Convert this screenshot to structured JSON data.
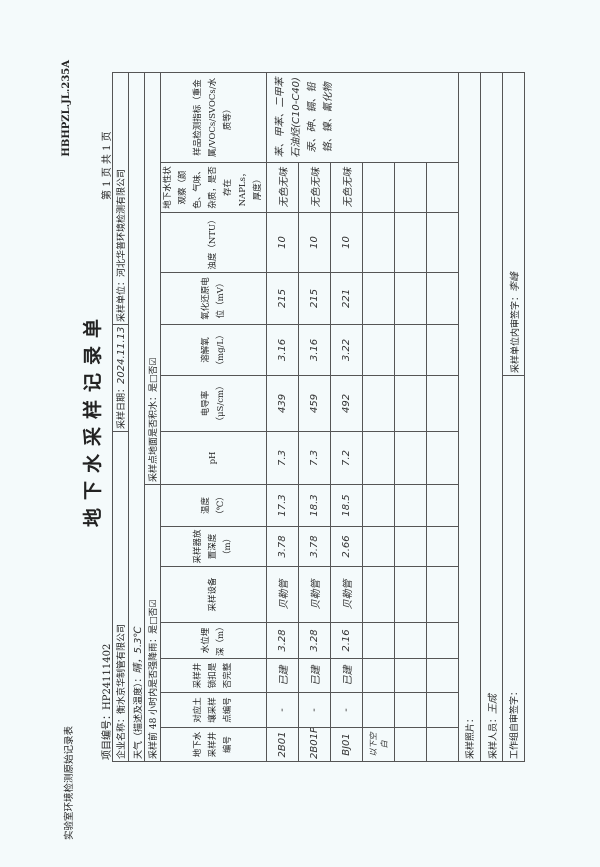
{
  "header": {
    "lab_form_name": "实验室环境检测原始记录表",
    "form_code": "HBHPZL.JL.235A",
    "title": "地下水采样记录单",
    "page": "第 1 页 共 1 页",
    "project_no_label": "项目编号：",
    "project_no": "HP24111402"
  },
  "info": {
    "company_label": "企业名称：",
    "company": "衡水京华制管有限公司",
    "date_label": "采样日期：",
    "date": "2024.11.13",
    "unit_label": "采样单位：",
    "unit": "河北华普环境检测有限公司",
    "weather_label": "天气（描述及温度）：",
    "weather": "晴，5.3℃",
    "rain_label": "采样前 48 小时内是否强降雨：是□否☑",
    "water_label": "采样点地面是否积水：是□否☑"
  },
  "columns": [
    "地下水采样井编号",
    "对应土壤采样点编号",
    "采样井锁扣是否完整",
    "水位埋深（m）",
    "采样设备",
    "采样器放置深度（m）",
    "温度（℃）",
    "pH",
    "电导率（μS/cm）",
    "溶解氧（mg/L）",
    "氧化还原电位（mV）",
    "浊度（NTU）",
    "地下水性状观察（颜色、气味、杂质，是否存在NAPLs，厚度）",
    "样品检测指标（重金属/VOCs/SVOCs/水质等）"
  ],
  "rows": [
    [
      "2B01",
      "-",
      "已建",
      "3.28",
      "贝勒管",
      "3.78",
      "17.3",
      "7.3",
      "439",
      "3.16",
      "215",
      "10",
      "无色无味"
    ],
    [
      "2B01P",
      "-",
      "已建",
      "3.28",
      "贝勒管",
      "3.78",
      "18.3",
      "7.3",
      "459",
      "3.16",
      "215",
      "10",
      "无色无味"
    ],
    [
      "BJ01",
      "-",
      "已建",
      "2.16",
      "贝勒管",
      "2.66",
      "18.5",
      "7.2",
      "492",
      "3.22",
      "221",
      "10",
      "无色无味"
    ],
    [
      "以下空白",
      "",
      "",
      "",
      "",
      "",
      "",
      "",
      "",
      "",
      "",
      "",
      ""
    ],
    [
      "",
      "",
      "",
      "",
      "",
      "",
      "",
      "",
      "",
      "",
      "",
      "",
      ""
    ],
    [
      "",
      "",
      "",
      "",
      "",
      "",
      "",
      "",
      "",
      "",
      "",
      "",
      ""
    ]
  ],
  "test_items": [
    "苯、甲苯、二甲苯",
    "石油烃(C10-C40)",
    "汞、砷、镉、铅",
    "铬、镍、氰化物"
  ],
  "footer": {
    "photo_label": "采样照片：",
    "sampler_label": "采样人员：",
    "sampler": "王成",
    "team_review_label": "工作组自审签字：",
    "unit_review_label": "采样单位内审签字：",
    "unit_reviewer": "李峰"
  }
}
